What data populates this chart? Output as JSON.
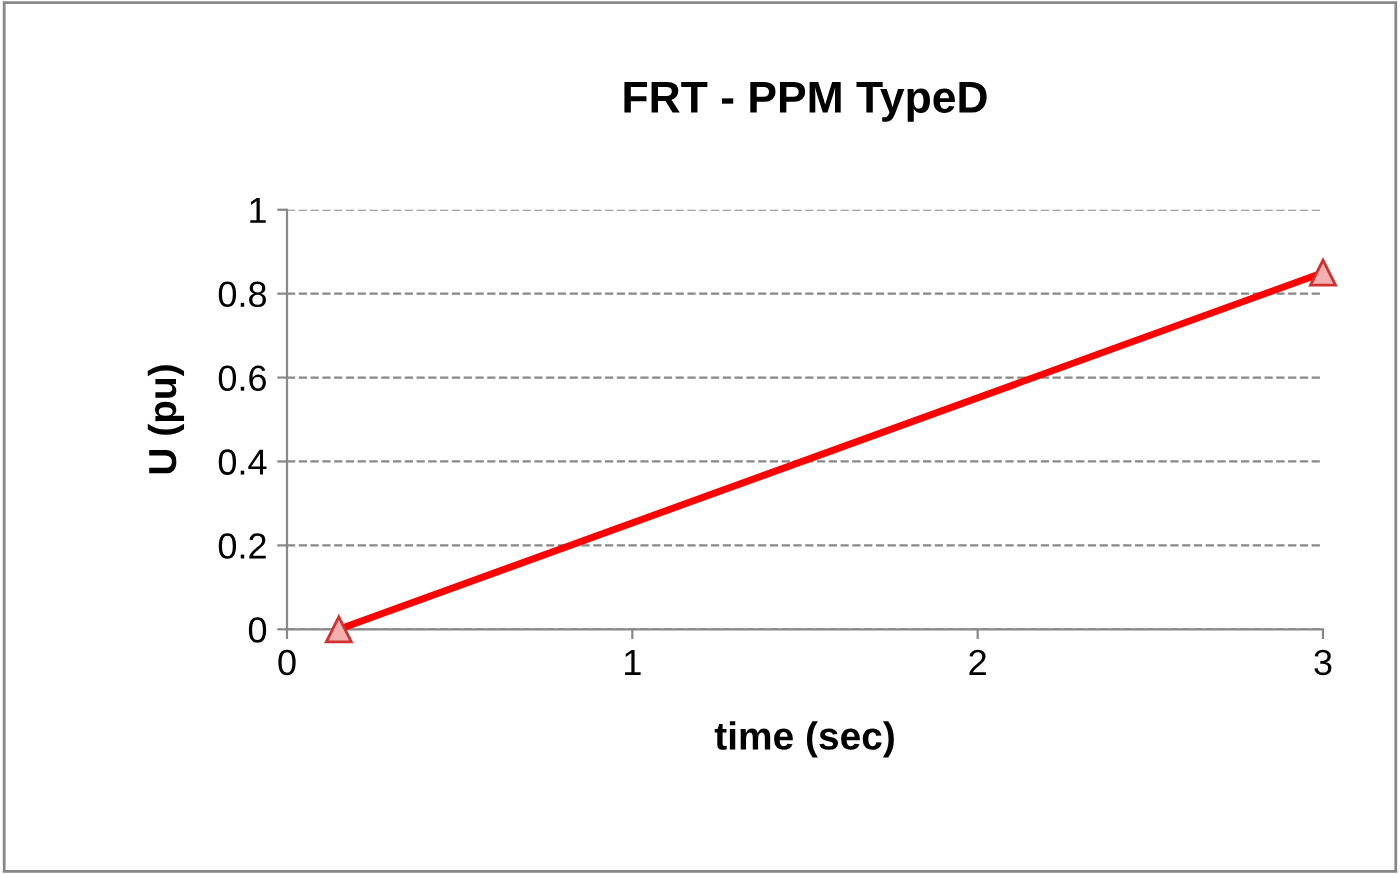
{
  "chart_data": {
    "type": "line",
    "title": "FRT - PPM TypeD",
    "xlabel": "time (sec)",
    "ylabel": "U (pu)",
    "series": [
      {
        "color": "#ff0000",
        "x": [
          0.15,
          3
        ],
        "values": [
          0,
          0.85
        ]
      }
    ],
    "xlim": [
      0,
      3
    ],
    "xticks": [
      0,
      1,
      2,
      3
    ],
    "ylim": [
      0,
      1
    ],
    "yticks": [
      0,
      0.2,
      0.4,
      0.6,
      0.8,
      1
    ],
    "grid": "y",
    "marker": "triangle",
    "line_style": "solid"
  }
}
